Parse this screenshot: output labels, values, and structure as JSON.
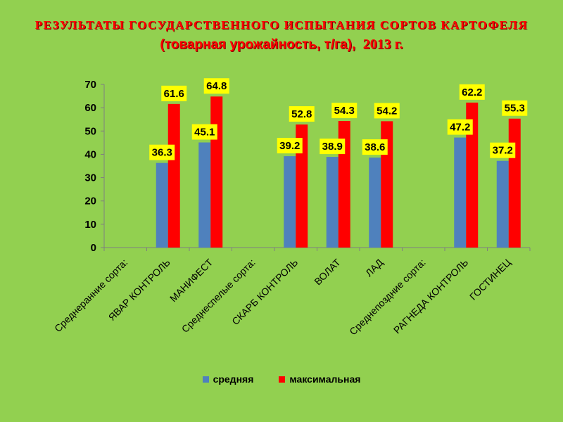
{
  "title_line1": "РЕЗУЛЬТАТЫ ГОСУДАРСТВЕННОГО ИСПЫТАНИЯ СОРТОВ КАРТОФЕЛЯ",
  "title_line2": "(товарная урожайность, т/га),",
  "title_year": "2013 г.",
  "colors": {
    "background": "#92d050",
    "series_avg": "#4f81bd",
    "series_max": "#ff0000",
    "label_bg": "#ffff00",
    "title": "#ff0000"
  },
  "chart_data": {
    "type": "bar",
    "categories": [
      "Среднеранние сорта:",
      "ЯВАР КОНТРОЛЬ",
      "МАНИФЕСТ",
      "Среднеспелые сорта:",
      "СКАРБ КОНТРОЛЬ",
      "ВОЛАТ",
      "ЛАД",
      "Среднепоздние сорта:",
      "РАГНЕДА КОНТРОЛЬ",
      "ГОСТИНЕЦ"
    ],
    "series": [
      {
        "name": "средняя",
        "color": "#4f81bd",
        "values": [
          null,
          36.3,
          45.1,
          null,
          39.2,
          38.9,
          38.6,
          null,
          47.2,
          37.2
        ]
      },
      {
        "name": "максимальная",
        "color": "#ff0000",
        "values": [
          null,
          61.6,
          64.8,
          null,
          52.8,
          54.3,
          54.2,
          null,
          62.2,
          55.3
        ]
      }
    ],
    "ylim": [
      0,
      70
    ],
    "yticks": [
      0,
      10,
      20,
      30,
      40,
      50,
      60,
      70
    ],
    "grid": false,
    "legend": "bottom",
    "xlabel": "",
    "ylabel": ""
  }
}
